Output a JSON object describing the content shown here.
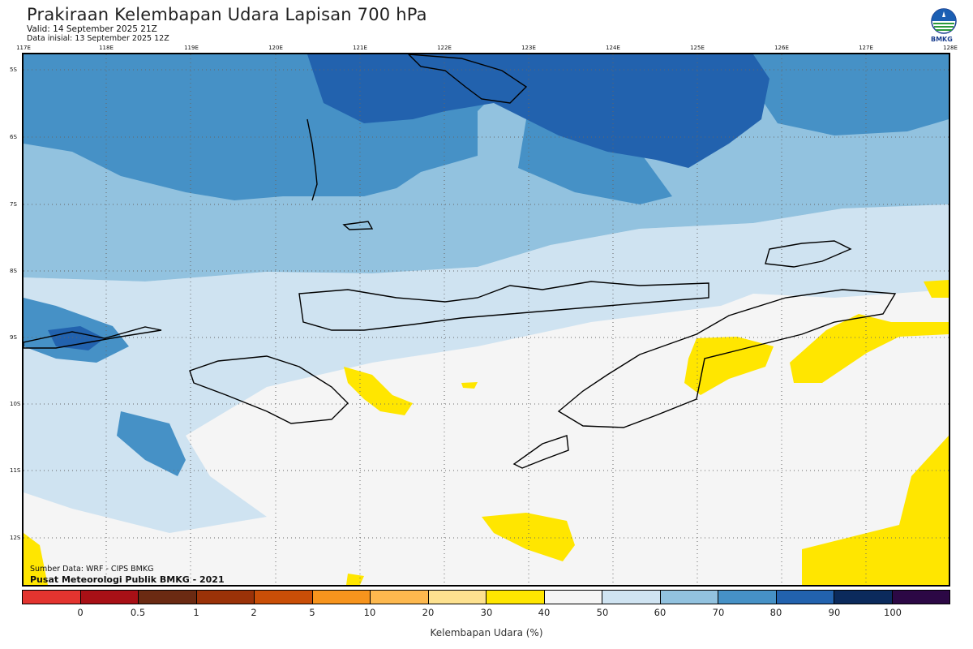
{
  "header": {
    "title": "Prakiraan Kelembapan Udara Lapisan 700 hPa",
    "valid": "Valid: 14 September 2025 21Z",
    "data_initial": "Data inisial: 13 September 2025 12Z"
  },
  "logo": {
    "text": "BMKG",
    "icon": "bmkg-logo-icon"
  },
  "map": {
    "x_ticks": [
      "117E",
      "118E",
      "119E",
      "120E",
      "121E",
      "122E",
      "123E",
      "124E",
      "125E",
      "126E",
      "127E",
      "128E"
    ],
    "y_ticks": [
      "5S",
      "6S",
      "7S",
      "8S",
      "9S",
      "10S",
      "11S",
      "12S"
    ],
    "extent": {
      "lon": [
        117,
        128
      ],
      "lat": [
        -4.8,
        -12.7
      ]
    },
    "source_line1": "Sumber Data: WRF - CIPS BMKG",
    "source_line2": "Pusat Meteorologi Publik BMKG - 2021"
  },
  "colorbar": {
    "title": "Kelembapan Udara (%)",
    "labels": [
      "0",
      "0.5",
      "1",
      "2",
      "5",
      "10",
      "20",
      "30",
      "40",
      "50",
      "60",
      "70",
      "80",
      "90",
      "100"
    ],
    "colors": [
      "#e3342f",
      "#a81016",
      "#6b2a12",
      "#9a3208",
      "#c94e07",
      "#f7941d",
      "#fdb84e",
      "#fde18f",
      "#ffe600",
      "#f5f5f5",
      "#cfe3f1",
      "#92c2df",
      "#4691c6",
      "#2262ae",
      "#0b2a5c",
      "#2c0845"
    ]
  },
  "legend_colors": {
    "very_humid": "#2262ae",
    "humid": "#4691c6",
    "moist": "#92c2df",
    "light_moist": "#cfe3f1",
    "neutral": "#f5f5f5",
    "dry": "#ffe600",
    "coastline": "#000000"
  }
}
